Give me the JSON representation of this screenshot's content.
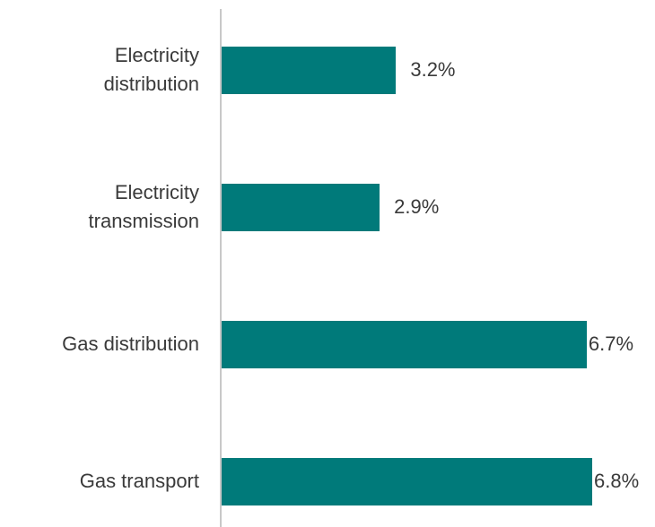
{
  "chart_data": {
    "type": "bar",
    "orientation": "horizontal",
    "categories": [
      "Electricity distribution",
      "Electricity transmission",
      "Gas distribution",
      "Gas transport"
    ],
    "values": [
      3.2,
      2.9,
      6.7,
      6.8
    ],
    "value_labels": [
      "3.2%",
      "2.9%",
      "6.7%",
      "6.8%"
    ],
    "color": "#007a7a"
  }
}
